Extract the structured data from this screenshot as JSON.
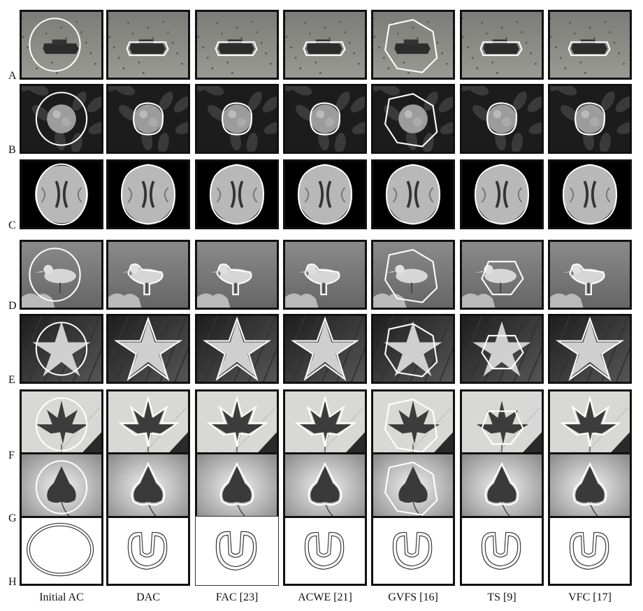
{
  "rows": [
    {
      "label": "A",
      "scene": "tank"
    },
    {
      "label": "B",
      "scene": "flower"
    },
    {
      "label": "C",
      "scene": "brain"
    },
    {
      "label": "D",
      "scene": "bird"
    },
    {
      "label": "E",
      "scene": "starfish"
    },
    {
      "label": "F",
      "scene": "maple-leaf"
    },
    {
      "label": "G",
      "scene": "ivy-leaf"
    },
    {
      "label": "H",
      "scene": "synthetic-u-shape"
    }
  ],
  "columns": [
    {
      "label": "Initial AC",
      "method": "initial"
    },
    {
      "label": "DAC",
      "method": "dac"
    },
    {
      "label": "FAC [23]",
      "method": "fac"
    },
    {
      "label": "ACWE [21]",
      "method": "acwe"
    },
    {
      "label": "GVFS [16]",
      "method": "gvfs"
    },
    {
      "label": "TS [9]",
      "method": "ts"
    },
    {
      "label": "VFC [17]",
      "method": "vfc"
    }
  ],
  "colors": {
    "border": "#111111",
    "contour": "#ffffff",
    "synthetic_background": "#ffffff",
    "synthetic_contour": "#333333"
  }
}
